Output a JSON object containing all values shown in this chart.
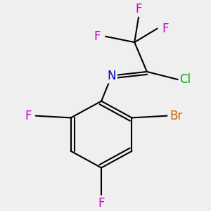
{
  "bg_color": "#efefef",
  "bond_color": "#000000",
  "bond_width": 1.5,
  "atom_colors": {
    "F": "#cc00cc",
    "Br": "#cc6600",
    "Cl": "#00aa00",
    "N": "#0000cc",
    "C": "#000000"
  },
  "font_size": 12
}
